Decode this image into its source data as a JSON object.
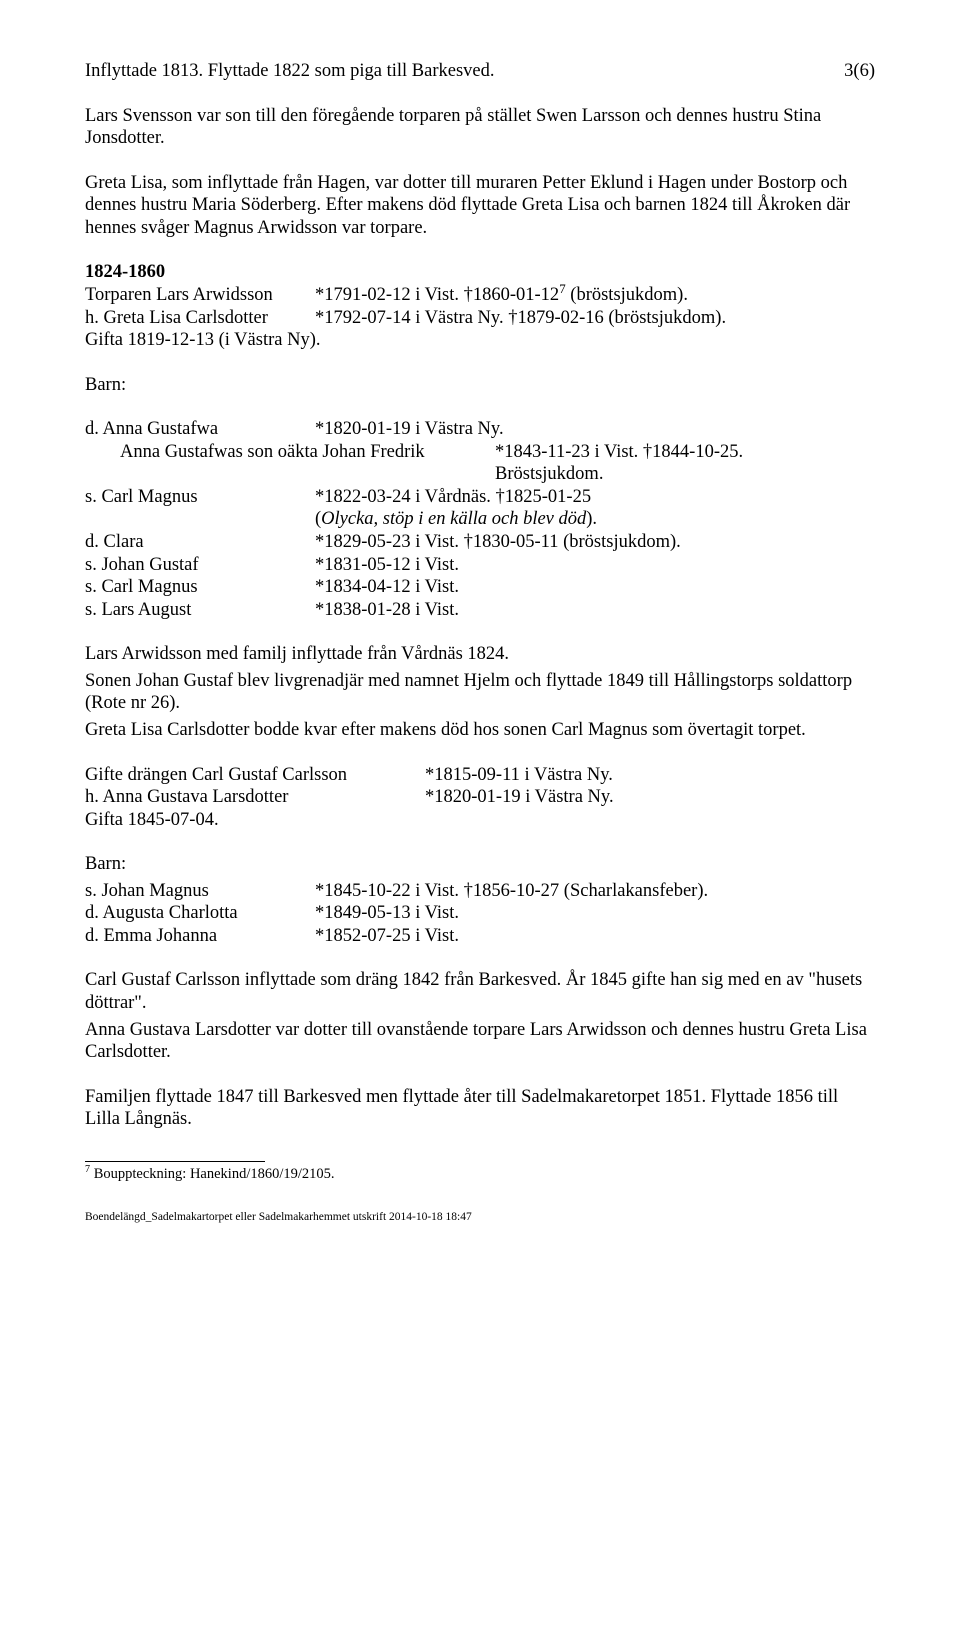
{
  "pageNumber": "3(6)",
  "p1": "Inflyttade 1813. Flyttade 1822 som piga till Barkesved.",
  "p2": "Lars Svensson var son till den föregående torparen på stället Swen Larsson och dennes hustru Stina Jonsdotter.",
  "p3": "Greta Lisa, som inflyttade från Hagen, var dotter till muraren Petter Eklund i Hagen under Bostorp och dennes hustru Maria Söderberg. Efter makens död flyttade Greta Lisa och barnen 1824 till Åkroken där hennes svåger Magnus Arwidsson var torpare.",
  "sec1": "1824-1860",
  "t1a": "Torparen Lars Arwidsson",
  "t1b_pre": "*1791-02-12 i Vist. †1860-01-12",
  "t1b_sup": "7",
  "t1b_post": " (bröstsjukdom).",
  "t2a": "h. Greta Lisa Carlsdotter",
  "t2b": "*1792-07-14 i Västra Ny. †1879-02-16 (bröstsjukdom).",
  "t3": "Gifta 1819-12-13 (i Västra Ny).",
  "barnLabel": "Barn:",
  "c1a": "d. Anna Gustafwa",
  "c1b": "*1820-01-19 i Västra Ny.",
  "c1_sub_a": "Anna Gustafwas son oäkta Johan Fredrik",
  "c1_sub_b": "*1843-11-23 i Vist. †1844-10-25.",
  "c1_sub_c": "Bröstsjukdom.",
  "c2a": "s. Carl Magnus",
  "c2b": "*1822-03-24 i Vårdnäs. †1825-01-25",
  "c2c_pre": "(",
  "c2c_it": "Olycka, stöp i en källa och blev död",
  "c2c_post": ").",
  "c3a": "d. Clara",
  "c3b": "*1829-05-23 i Vist. †1830-05-11 (bröstsjukdom).",
  "c4a": "s. Johan Gustaf",
  "c4b": "*1831-05-12 i Vist.",
  "c5a": "s. Carl Magnus",
  "c5b": "*1834-04-12 i Vist.",
  "c6a": "s. Lars August",
  "c6b": "*1838-01-28 i Vist.",
  "p4": "Lars Arwidsson med familj inflyttade från Vårdnäs 1824.",
  "p5": "Sonen Johan Gustaf blev livgrenadjär med namnet Hjelm och flyttade 1849 till Hållingstorps soldattorp (Rote nr 26).",
  "p6": "Greta Lisa Carlsdotter bodde kvar efter makens död hos sonen Carl Magnus som övertagit torpet.",
  "g1a": "Gifte drängen Carl Gustaf Carlsson",
  "g1b": "*1815-09-11 i Västra Ny.",
  "g2a": "h. Anna Gustava Larsdotter",
  "g2b": "*1820-01-19 i Västra Ny.",
  "g3": "Gifta 1845-07-04.",
  "b1a": "s. Johan Magnus",
  "b1b": "*1845-10-22 i Vist. †1856-10-27 (Scharlakansfeber).",
  "b2a": "d. Augusta Charlotta",
  "b2b": "*1849-05-13 i Vist.",
  "b3a": "d. Emma Johanna",
  "b3b": "*1852-07-25 i Vist.",
  "p7": "Carl Gustaf Carlsson inflyttade som dräng 1842 från Barkesved. År 1845 gifte han sig med en av \"husets döttrar\".",
  "p8": "Anna Gustava Larsdotter var dotter till ovanstående torpare Lars Arwidsson och dennes hustru Greta Lisa Carlsdotter.",
  "p9": "Familjen flyttade 1847 till Barkesved men flyttade åter till Sadelmakaretorpet 1851. Flyttade 1856 till Lilla Långnäs.",
  "fn_sup": "7",
  "fn_text": " Bouppteckning: Hanekind/1860/19/2105.",
  "footer": "Boendelängd_Sadelmakartorpet eller Sadelmakarhemmet utskrift 2014-10-18 18:47"
}
